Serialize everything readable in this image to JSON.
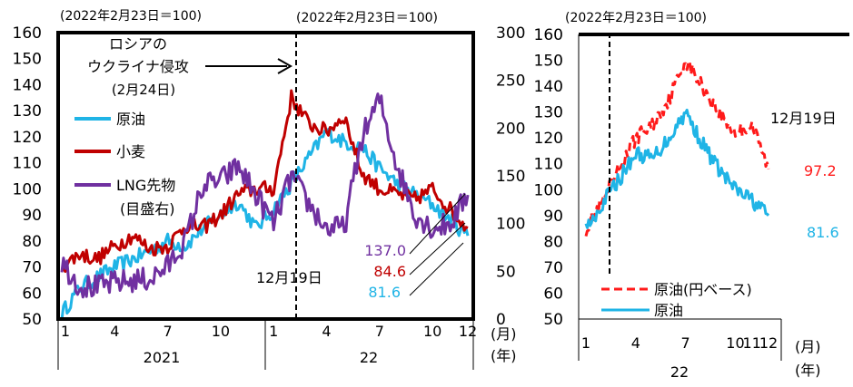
{
  "chart_data": [
    {
      "type": "line",
      "base_note_left": "(2022年2月23日＝100)",
      "base_note_right": "(2022年2月23日＝100)",
      "ylim_left": [
        50,
        160
      ],
      "yticks_left": [
        "50",
        "60",
        "70",
        "80",
        "90",
        "100",
        "110",
        "120",
        "130",
        "140",
        "150",
        "160"
      ],
      "ylim_right": [
        0,
        300
      ],
      "yticks_right": [
        "0",
        "50",
        "100",
        "150",
        "200",
        "250",
        "300"
      ],
      "x_month_ticks": [
        "1",
        "4",
        "7",
        "10",
        "1",
        "4",
        "7",
        "10",
        "12"
      ],
      "x_month_index": [
        0,
        3,
        6,
        9,
        12,
        15,
        18,
        21,
        23
      ],
      "x_year_labels": [
        "2021",
        "22"
      ],
      "x_unit_month": "(月)",
      "x_unit_year": "(年)",
      "annotation_line1": "ロシアの",
      "annotation_line2": "ウクライナ侵攻",
      "annotation_line3": "(2月24日)",
      "event_date_label": "12月19日",
      "end_value_lng": "137.0",
      "end_value_wheat": "84.6",
      "end_value_oil": "81.6",
      "axis_label_lng_line1": "(目盛右)",
      "series": [
        {
          "name": "原油",
          "color": "#1fb4e6",
          "axis": "left",
          "monthly": [
            52,
            62,
            66,
            70,
            73,
            76,
            80,
            78,
            85,
            90,
            95,
            85,
            92,
            102,
            112,
            122,
            118,
            116,
            108,
            102,
            98,
            94,
            88,
            82
          ],
          "end_value": 81.6
        },
        {
          "name": "小麦",
          "color": "#c00000",
          "axis": "left",
          "monthly": [
            70,
            75,
            73,
            78,
            82,
            77,
            78,
            86,
            85,
            90,
            98,
            100,
            100,
            135,
            125,
            122,
            128,
            106,
            100,
            98,
            96,
            100,
            92,
            85
          ],
          "end_value": 84.6
        },
        {
          "name": "LNG先物",
          "color": "#7030a0",
          "axis": "right",
          "monthly": [
            60,
            35,
            33,
            38,
            40,
            42,
            55,
            82,
            140,
            145,
            160,
            130,
            100,
            150,
            120,
            95,
            95,
            190,
            230,
            160,
            110,
            95,
            100,
            130
          ],
          "end_value": 137.0
        }
      ]
    },
    {
      "type": "line",
      "base_note": "(2022年2月23日＝100)",
      "ylim": [
        50,
        160
      ],
      "yticks": [
        "50",
        "60",
        "70",
        "80",
        "90",
        "100",
        "110",
        "120",
        "130",
        "140",
        "150",
        "160"
      ],
      "x_month_ticks": [
        "1",
        "4",
        "7",
        "10",
        "11",
        "12"
      ],
      "x_month_index": [
        0,
        3,
        6,
        9,
        10,
        11
      ],
      "x_year_label": "22",
      "x_unit_month": "(月)",
      "x_unit_year": "(年)",
      "event_date_label": "12月19日",
      "end_value_yen": "97.2",
      "end_value_usd": "81.6",
      "series": [
        {
          "name": "原油(円ベース)",
          "color": "#ff1a1a",
          "dash": true,
          "monthly": [
            85,
            95,
            108,
            120,
            125,
            135,
            150,
            140,
            130,
            122,
            125,
            108
          ],
          "end_value": 97.2
        },
        {
          "name": "原油",
          "color": "#1fb4e6",
          "dash": false,
          "monthly": [
            85,
            95,
            104,
            114,
            112,
            120,
            130,
            118,
            108,
            100,
            96,
            90
          ],
          "end_value": 81.6
        }
      ]
    }
  ]
}
